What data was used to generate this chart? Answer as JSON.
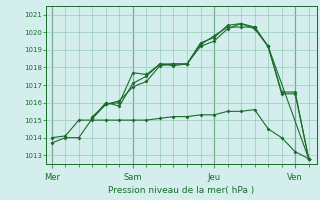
{
  "title": "",
  "xlabel": "Pression niveau de la mer( hPa )",
  "bg_color": "#d4eeee",
  "grid_color": "#99ccbb",
  "line_color": "#1a6b2a",
  "ylim": [
    1012.5,
    1021.5
  ],
  "yticks": [
    1013,
    1014,
    1015,
    1016,
    1017,
    1018,
    1019,
    1020,
    1021
  ],
  "day_labels": [
    "Mer",
    "Sam",
    "Jeu",
    "Ven"
  ],
  "day_positions": [
    0,
    3,
    6,
    9
  ],
  "xlim": [
    -0.2,
    9.8
  ],
  "series": [
    {
      "x": [
        0,
        0.5,
        1.0,
        1.5,
        2.0,
        2.5,
        3.0,
        3.5,
        4.0,
        4.5,
        5.0,
        5.5,
        6.0,
        6.5,
        7.0,
        7.5,
        8.0,
        8.5,
        9.0,
        9.5
      ],
      "y": [
        1013.7,
        1014.0,
        1014.0,
        1015.1,
        1015.9,
        1016.0,
        1017.7,
        1017.6,
        1018.2,
        1018.2,
        1018.2,
        1019.4,
        1019.7,
        1020.4,
        1020.5,
        1020.3,
        1019.2,
        1016.5,
        1016.5,
        1012.8
      ]
    },
    {
      "x": [
        1.5,
        2.0,
        2.5,
        3.0,
        3.5,
        4.0,
        4.5,
        5.0,
        5.5,
        6.0,
        6.5,
        7.0,
        7.5,
        8.0,
        9.5
      ],
      "y": [
        1015.1,
        1016.0,
        1015.8,
        1017.1,
        1017.5,
        1018.2,
        1018.1,
        1018.2,
        1019.2,
        1019.5,
        1020.2,
        1020.5,
        1020.2,
        1019.2,
        1012.8
      ]
    },
    {
      "x": [
        1.5,
        2.0,
        2.5,
        3.0,
        3.5,
        4.0,
        4.5,
        5.0,
        5.5,
        6.0,
        6.5,
        7.0,
        7.5,
        8.0,
        8.5,
        9.0,
        9.5
      ],
      "y": [
        1015.2,
        1015.9,
        1016.1,
        1016.9,
        1017.2,
        1018.1,
        1018.2,
        1018.2,
        1019.3,
        1019.8,
        1020.3,
        1020.3,
        1020.3,
        1019.2,
        1016.6,
        1016.6,
        1012.8
      ]
    },
    {
      "x": [
        0,
        0.5,
        1.0,
        1.5,
        2.0,
        2.5,
        3.0,
        3.5,
        4.0,
        4.5,
        5.0,
        5.5,
        6.0,
        6.5,
        7.0,
        7.5,
        8.0,
        8.5,
        9.0,
        9.5
      ],
      "y": [
        1014.0,
        1014.1,
        1015.0,
        1015.0,
        1015.0,
        1015.0,
        1015.0,
        1015.0,
        1015.1,
        1015.2,
        1015.2,
        1015.3,
        1015.3,
        1015.5,
        1015.5,
        1015.6,
        1014.5,
        1014.0,
        1013.2,
        1012.8
      ]
    }
  ]
}
